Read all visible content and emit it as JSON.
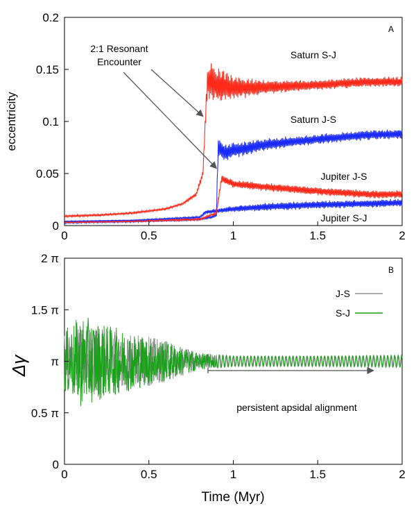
{
  "chart_data": [
    {
      "type": "line",
      "panel_label": "A",
      "title": "",
      "xlabel": "",
      "ylabel": "eccentricity",
      "xlim": [
        0,
        2
      ],
      "ylim": [
        0,
        0.2
      ],
      "xticks": [
        {
          "v": 0,
          "label": "0"
        },
        {
          "v": 0.5,
          "label": "0.5"
        },
        {
          "v": 1,
          "label": "1"
        },
        {
          "v": 1.5,
          "label": "1.5"
        },
        {
          "v": 2,
          "label": "2"
        }
      ],
      "yticks": [
        {
          "v": 0,
          "label": "0"
        },
        {
          "v": 0.05,
          "label": "0.05"
        },
        {
          "v": 0.1,
          "label": "0.1"
        },
        {
          "v": 0.15,
          "label": "0.15"
        },
        {
          "v": 0.2,
          "label": "0.2"
        }
      ],
      "series": [
        {
          "name": "Saturn S-J",
          "color": "#ff2a1a",
          "x": [
            0,
            0.2,
            0.4,
            0.6,
            0.7,
            0.78,
            0.82,
            0.84,
            0.85,
            0.9,
            1.0,
            1.2,
            1.5,
            1.8,
            2.0
          ],
          "values": [
            0.009,
            0.01,
            0.012,
            0.016,
            0.021,
            0.03,
            0.05,
            0.12,
            0.14,
            0.135,
            0.132,
            0.133,
            0.135,
            0.138,
            0.138
          ],
          "amplitude": [
            0.001,
            0.001,
            0.001,
            0.001,
            0.001,
            0.002,
            0.004,
            0.01,
            0.018,
            0.018,
            0.012,
            0.007,
            0.005,
            0.005,
            0.005
          ]
        },
        {
          "name": "Saturn J-S",
          "color": "#1a2aff",
          "x": [
            0,
            0.4,
            0.8,
            0.87,
            0.9,
            0.91,
            0.95,
            1.0,
            1.2,
            1.5,
            1.8,
            2.0
          ],
          "values": [
            0.003,
            0.004,
            0.006,
            0.008,
            0.01,
            0.075,
            0.07,
            0.072,
            0.078,
            0.083,
            0.087,
            0.088
          ],
          "amplitude": [
            0.001,
            0.001,
            0.001,
            0.001,
            0.002,
            0.01,
            0.01,
            0.008,
            0.006,
            0.005,
            0.005,
            0.005
          ]
        },
        {
          "name": "Jupiter J-S",
          "color": "#ff2a1a",
          "x": [
            0,
            0.4,
            0.8,
            0.9,
            0.93,
            1.0,
            1.2,
            1.5,
            1.8,
            2.0
          ],
          "values": [
            0.003,
            0.004,
            0.006,
            0.012,
            0.045,
            0.04,
            0.037,
            0.033,
            0.03,
            0.03
          ],
          "amplitude": [
            0.0005,
            0.0005,
            0.001,
            0.001,
            0.004,
            0.004,
            0.004,
            0.004,
            0.004,
            0.004
          ]
        },
        {
          "name": "Jupiter S-J",
          "color": "#1a2aff",
          "x": [
            0,
            0.4,
            0.8,
            0.84,
            0.9,
            1.0,
            1.2,
            1.5,
            1.8,
            2.0
          ],
          "values": [
            0.004,
            0.005,
            0.008,
            0.013,
            0.014,
            0.016,
            0.018,
            0.02,
            0.021,
            0.022
          ],
          "amplitude": [
            0.0005,
            0.0005,
            0.001,
            0.002,
            0.002,
            0.003,
            0.004,
            0.004,
            0.004,
            0.004
          ]
        }
      ],
      "annotations": [
        {
          "text_lines": [
            "2:1 Resonant",
            "Encounter"
          ],
          "arrow_targets_x": [
            0.82,
            0.9
          ],
          "arrow_targets_y": [
            0.105,
            0.055
          ]
        },
        {
          "text": "Saturn S-J"
        },
        {
          "text": "Saturn J-S"
        },
        {
          "text": "Jupiter J-S"
        },
        {
          "text": "Jupiter S-J"
        }
      ]
    },
    {
      "type": "line",
      "panel_label": "B",
      "title": "",
      "xlabel": "Time (Myr)",
      "ylabel": "Δγ",
      "xlim": [
        0,
        2
      ],
      "ylim": [
        0,
        2
      ],
      "yunit": "π",
      "xticks": [
        {
          "v": 0,
          "label": "0"
        },
        {
          "v": 0.5,
          "label": "0.5"
        },
        {
          "v": 1,
          "label": "1"
        },
        {
          "v": 1.5,
          "label": "1.5"
        },
        {
          "v": 2,
          "label": "2"
        }
      ],
      "yticks": [
        {
          "v": 0,
          "label": "0"
        },
        {
          "v": 0.5,
          "label": "0.5 π"
        },
        {
          "v": 1,
          "label": "π"
        },
        {
          "v": 1.5,
          "label": "1.5 π"
        },
        {
          "v": 2,
          "label": "2 π"
        }
      ],
      "series": [
        {
          "name": "J-S",
          "color": "#909090",
          "center": 1.0,
          "x": [
            0,
            0.2,
            0.4,
            0.6,
            0.8,
            1.0,
            1.5,
            2.0
          ],
          "amplitude": [
            0.3,
            0.35,
            0.28,
            0.2,
            0.08,
            0.05,
            0.05,
            0.05
          ]
        },
        {
          "name": "S-J",
          "color": "#1aa01a",
          "center": 1.0,
          "x": [
            0,
            0.1,
            0.2,
            0.4,
            0.6,
            0.8,
            1.0,
            1.5,
            2.0
          ],
          "amplitude": [
            0.3,
            0.45,
            0.38,
            0.28,
            0.2,
            0.08,
            0.05,
            0.05,
            0.06
          ]
        }
      ],
      "legend": {
        "placement": "top-right",
        "entries": [
          "J-S",
          "S-J"
        ]
      },
      "annotations": [
        {
          "text": "persistent apsidal alignment",
          "arrow_from_x": 0.85,
          "arrow_to_x": 1.83,
          "arrow_y": 0.91
        }
      ]
    }
  ]
}
